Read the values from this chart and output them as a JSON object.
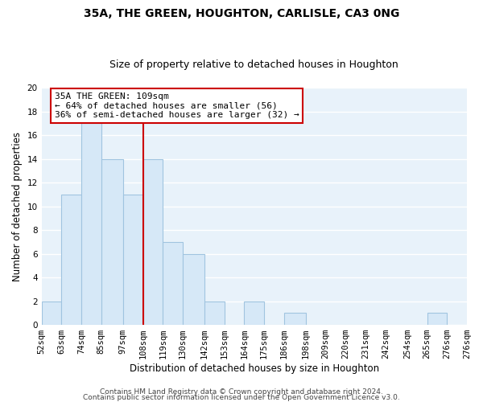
{
  "title": "35A, THE GREEN, HOUGHTON, CARLISLE, CA3 0NG",
  "subtitle": "Size of property relative to detached houses in Houghton",
  "xlabel": "Distribution of detached houses by size in Houghton",
  "ylabel": "Number of detached properties",
  "bar_color": "#d6e8f7",
  "bar_edgecolor": "#a0c4e0",
  "grid_color": "#ffffff",
  "bg_color": "#e8f2fa",
  "bin_labels": [
    "52sqm",
    "63sqm",
    "74sqm",
    "85sqm",
    "97sqm",
    "108sqm",
    "119sqm",
    "130sqm",
    "142sqm",
    "153sqm",
    "164sqm",
    "175sqm",
    "186sqm",
    "198sqm",
    "209sqm",
    "220sqm",
    "231sqm",
    "242sqm",
    "254sqm",
    "265sqm",
    "276sqm"
  ],
  "bin_edges": [
    52,
    63,
    74,
    85,
    97,
    108,
    119,
    130,
    142,
    153,
    164,
    175,
    186,
    198,
    209,
    220,
    231,
    242,
    254,
    265,
    276
  ],
  "counts": [
    2,
    11,
    17,
    14,
    11,
    14,
    7,
    6,
    2,
    0,
    2,
    0,
    1,
    0,
    0,
    0,
    0,
    0,
    0,
    1
  ],
  "ylim": [
    0,
    20
  ],
  "yticks": [
    0,
    2,
    4,
    6,
    8,
    10,
    12,
    14,
    16,
    18,
    20
  ],
  "vline_x": 108,
  "vline_color": "#cc0000",
  "annotation_line1": "35A THE GREEN: 109sqm",
  "annotation_line2": "← 64% of detached houses are smaller (56)",
  "annotation_line3": "36% of semi-detached houses are larger (32) →",
  "annotation_box_edgecolor": "#cc0000",
  "annotation_box_facecolor": "#ffffff",
  "footer_line1": "Contains HM Land Registry data © Crown copyright and database right 2024.",
  "footer_line2": "Contains public sector information licensed under the Open Government Licence v3.0.",
  "title_fontsize": 10,
  "subtitle_fontsize": 9,
  "axis_label_fontsize": 8.5,
  "tick_fontsize": 7.5,
  "annotation_fontsize": 8,
  "footer_fontsize": 6.5
}
